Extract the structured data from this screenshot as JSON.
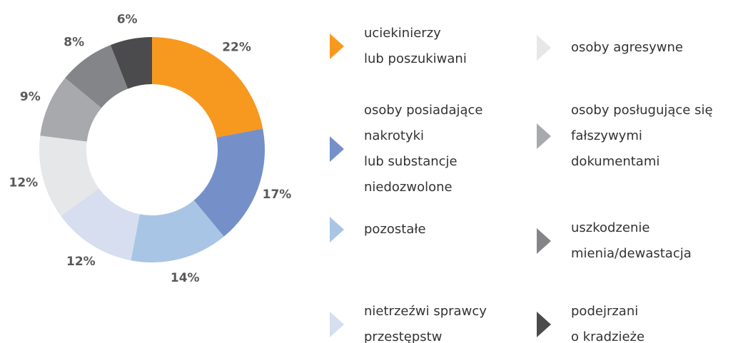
{
  "chart_data": {
    "type": "donut",
    "categories": [
      "uciekinierzy\nlub poszukiwani",
      "osoby posiadające\nnakrotyki\nlub substancje\nniedozwolone",
      "pozostałe",
      "nietrzeźwi sprawcy\nprzestępstw",
      "osoby agresywne",
      "osoby posługujące się\nfałszywymi\ndokumentami",
      "uszkodzenie\nmienia/dewastacja",
      "podejrzani\no kradzieże"
    ],
    "values": [
      22,
      17,
      14,
      12,
      12,
      9,
      8,
      6
    ],
    "value_labels": [
      "22%",
      "17%",
      "14%",
      "12%",
      "12%",
      "9%",
      "8%",
      "6%"
    ],
    "colors": [
      "#f7991f",
      "#7590c9",
      "#a9c5e5",
      "#d6deef",
      "#e6e7e8",
      "#a7a9ac",
      "#838588",
      "#4b4b4d"
    ]
  }
}
